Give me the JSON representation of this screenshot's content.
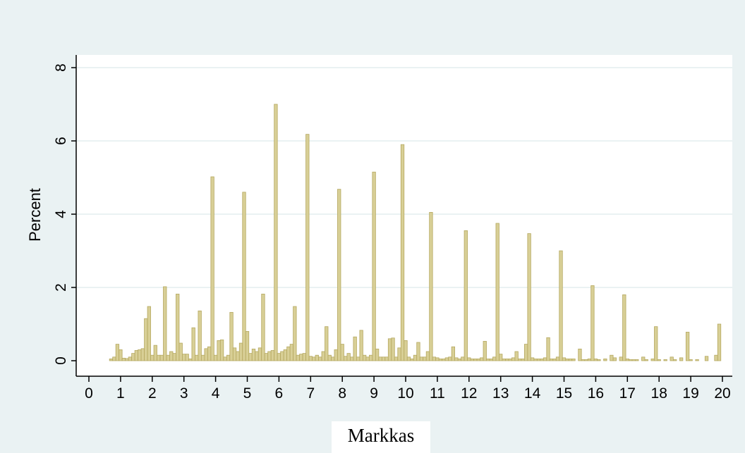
{
  "colors": {
    "background": "#eaf2f3",
    "plot_bg": "#ffffff",
    "bar_fill": "#d8cf96",
    "bar_stroke": "#b5a860",
    "grid": "#eaf2f3",
    "axis": "#000000"
  },
  "chart_data": {
    "type": "bar",
    "title": "",
    "xlabel": "Markkas",
    "ylabel": "Percent",
    "xlim": [
      -0.3,
      20.3
    ],
    "ylim": [
      -0.25,
      8.4
    ],
    "xticks": [
      "0",
      "1",
      "2",
      "3",
      "4",
      "5",
      "6",
      "7",
      "8",
      "9",
      "10",
      "11",
      "12",
      "13",
      "14",
      "15",
      "16",
      "17",
      "18",
      "19",
      "20"
    ],
    "yticks": [
      "0",
      "2",
      "4",
      "6",
      "8"
    ],
    "grid": "horizontal",
    "bin_width": 0.1,
    "bins": [
      {
        "x": 0.7,
        "y": 0.05
      },
      {
        "x": 0.8,
        "y": 0.1
      },
      {
        "x": 0.9,
        "y": 0.45
      },
      {
        "x": 1.0,
        "y": 0.3
      },
      {
        "x": 1.1,
        "y": 0.07
      },
      {
        "x": 1.2,
        "y": 0.06
      },
      {
        "x": 1.3,
        "y": 0.1
      },
      {
        "x": 1.4,
        "y": 0.2
      },
      {
        "x": 1.5,
        "y": 0.28
      },
      {
        "x": 1.6,
        "y": 0.3
      },
      {
        "x": 1.7,
        "y": 0.33
      },
      {
        "x": 1.8,
        "y": 1.15
      },
      {
        "x": 1.9,
        "y": 1.48
      },
      {
        "x": 2.0,
        "y": 0.15
      },
      {
        "x": 2.1,
        "y": 0.42
      },
      {
        "x": 2.2,
        "y": 0.15
      },
      {
        "x": 2.3,
        "y": 0.15
      },
      {
        "x": 2.4,
        "y": 2.02
      },
      {
        "x": 2.5,
        "y": 0.15
      },
      {
        "x": 2.6,
        "y": 0.25
      },
      {
        "x": 2.7,
        "y": 0.2
      },
      {
        "x": 2.8,
        "y": 1.82
      },
      {
        "x": 2.9,
        "y": 0.48
      },
      {
        "x": 3.0,
        "y": 0.18
      },
      {
        "x": 3.1,
        "y": 0.18
      },
      {
        "x": 3.2,
        "y": 0.05
      },
      {
        "x": 3.3,
        "y": 0.9
      },
      {
        "x": 3.4,
        "y": 0.15
      },
      {
        "x": 3.5,
        "y": 1.36
      },
      {
        "x": 3.6,
        "y": 0.15
      },
      {
        "x": 3.7,
        "y": 0.33
      },
      {
        "x": 3.8,
        "y": 0.38
      },
      {
        "x": 3.9,
        "y": 5.02
      },
      {
        "x": 4.0,
        "y": 0.15
      },
      {
        "x": 4.1,
        "y": 0.55
      },
      {
        "x": 4.2,
        "y": 0.57
      },
      {
        "x": 4.3,
        "y": 0.1
      },
      {
        "x": 4.4,
        "y": 0.15
      },
      {
        "x": 4.5,
        "y": 1.32
      },
      {
        "x": 4.6,
        "y": 0.35
      },
      {
        "x": 4.7,
        "y": 0.25
      },
      {
        "x": 4.8,
        "y": 0.48
      },
      {
        "x": 4.9,
        "y": 4.6
      },
      {
        "x": 5.0,
        "y": 0.8
      },
      {
        "x": 5.1,
        "y": 0.2
      },
      {
        "x": 5.2,
        "y": 0.32
      },
      {
        "x": 5.3,
        "y": 0.25
      },
      {
        "x": 5.4,
        "y": 0.35
      },
      {
        "x": 5.5,
        "y": 1.82
      },
      {
        "x": 5.6,
        "y": 0.2
      },
      {
        "x": 5.7,
        "y": 0.25
      },
      {
        "x": 5.8,
        "y": 0.28
      },
      {
        "x": 5.9,
        "y": 7.0
      },
      {
        "x": 6.0,
        "y": 0.2
      },
      {
        "x": 6.1,
        "y": 0.25
      },
      {
        "x": 6.2,
        "y": 0.3
      },
      {
        "x": 6.3,
        "y": 0.38
      },
      {
        "x": 6.4,
        "y": 0.45
      },
      {
        "x": 6.5,
        "y": 1.48
      },
      {
        "x": 6.6,
        "y": 0.15
      },
      {
        "x": 6.7,
        "y": 0.18
      },
      {
        "x": 6.8,
        "y": 0.2
      },
      {
        "x": 6.9,
        "y": 6.18
      },
      {
        "x": 7.0,
        "y": 0.12
      },
      {
        "x": 7.1,
        "y": 0.1
      },
      {
        "x": 7.2,
        "y": 0.15
      },
      {
        "x": 7.3,
        "y": 0.1
      },
      {
        "x": 7.4,
        "y": 0.25
      },
      {
        "x": 7.5,
        "y": 0.93
      },
      {
        "x": 7.6,
        "y": 0.15
      },
      {
        "x": 7.7,
        "y": 0.1
      },
      {
        "x": 7.8,
        "y": 0.3
      },
      {
        "x": 7.9,
        "y": 4.68
      },
      {
        "x": 8.0,
        "y": 0.45
      },
      {
        "x": 8.1,
        "y": 0.12
      },
      {
        "x": 8.2,
        "y": 0.2
      },
      {
        "x": 8.3,
        "y": 0.1
      },
      {
        "x": 8.4,
        "y": 0.65
      },
      {
        "x": 8.5,
        "y": 0.1
      },
      {
        "x": 8.6,
        "y": 0.83
      },
      {
        "x": 8.7,
        "y": 0.15
      },
      {
        "x": 8.8,
        "y": 0.1
      },
      {
        "x": 8.9,
        "y": 0.15
      },
      {
        "x": 9.0,
        "y": 5.15
      },
      {
        "x": 9.1,
        "y": 0.32
      },
      {
        "x": 9.2,
        "y": 0.1
      },
      {
        "x": 9.3,
        "y": 0.1
      },
      {
        "x": 9.4,
        "y": 0.1
      },
      {
        "x": 9.5,
        "y": 0.6
      },
      {
        "x": 9.6,
        "y": 0.62
      },
      {
        "x": 9.7,
        "y": 0.1
      },
      {
        "x": 9.8,
        "y": 0.35
      },
      {
        "x": 9.9,
        "y": 5.9
      },
      {
        "x": 10.0,
        "y": 0.55
      },
      {
        "x": 10.1,
        "y": 0.1
      },
      {
        "x": 10.2,
        "y": 0.05
      },
      {
        "x": 10.3,
        "y": 0.15
      },
      {
        "x": 10.4,
        "y": 0.5
      },
      {
        "x": 10.5,
        "y": 0.1
      },
      {
        "x": 10.6,
        "y": 0.1
      },
      {
        "x": 10.7,
        "y": 0.25
      },
      {
        "x": 10.8,
        "y": 4.05
      },
      {
        "x": 10.9,
        "y": 0.1
      },
      {
        "x": 11.0,
        "y": 0.08
      },
      {
        "x": 11.1,
        "y": 0.05
      },
      {
        "x": 11.2,
        "y": 0.05
      },
      {
        "x": 11.3,
        "y": 0.08
      },
      {
        "x": 11.4,
        "y": 0.1
      },
      {
        "x": 11.5,
        "y": 0.38
      },
      {
        "x": 11.6,
        "y": 0.08
      },
      {
        "x": 11.7,
        "y": 0.05
      },
      {
        "x": 11.8,
        "y": 0.1
      },
      {
        "x": 11.9,
        "y": 3.55
      },
      {
        "x": 12.0,
        "y": 0.08
      },
      {
        "x": 12.1,
        "y": 0.05
      },
      {
        "x": 12.2,
        "y": 0.05
      },
      {
        "x": 12.3,
        "y": 0.05
      },
      {
        "x": 12.4,
        "y": 0.08
      },
      {
        "x": 12.5,
        "y": 0.53
      },
      {
        "x": 12.6,
        "y": 0.05
      },
      {
        "x": 12.7,
        "y": 0.05
      },
      {
        "x": 12.8,
        "y": 0.1
      },
      {
        "x": 12.9,
        "y": 3.75
      },
      {
        "x": 13.0,
        "y": 0.18
      },
      {
        "x": 13.1,
        "y": 0.05
      },
      {
        "x": 13.2,
        "y": 0.05
      },
      {
        "x": 13.3,
        "y": 0.05
      },
      {
        "x": 13.4,
        "y": 0.08
      },
      {
        "x": 13.5,
        "y": 0.25
      },
      {
        "x": 13.6,
        "y": 0.05
      },
      {
        "x": 13.7,
        "y": 0.05
      },
      {
        "x": 13.8,
        "y": 0.45
      },
      {
        "x": 13.9,
        "y": 3.47
      },
      {
        "x": 14.0,
        "y": 0.08
      },
      {
        "x": 14.1,
        "y": 0.05
      },
      {
        "x": 14.2,
        "y": 0.05
      },
      {
        "x": 14.3,
        "y": 0.05
      },
      {
        "x": 14.4,
        "y": 0.08
      },
      {
        "x": 14.5,
        "y": 0.63
      },
      {
        "x": 14.6,
        "y": 0.05
      },
      {
        "x": 14.7,
        "y": 0.05
      },
      {
        "x": 14.8,
        "y": 0.1
      },
      {
        "x": 14.9,
        "y": 3.0
      },
      {
        "x": 15.0,
        "y": 0.08
      },
      {
        "x": 15.1,
        "y": 0.05
      },
      {
        "x": 15.2,
        "y": 0.05
      },
      {
        "x": 15.3,
        "y": 0.05
      },
      {
        "x": 15.5,
        "y": 0.32
      },
      {
        "x": 15.6,
        "y": 0.03
      },
      {
        "x": 15.7,
        "y": 0.03
      },
      {
        "x": 15.8,
        "y": 0.05
      },
      {
        "x": 15.9,
        "y": 2.05
      },
      {
        "x": 16.0,
        "y": 0.05
      },
      {
        "x": 16.1,
        "y": 0.03
      },
      {
        "x": 16.3,
        "y": 0.05
      },
      {
        "x": 16.5,
        "y": 0.15
      },
      {
        "x": 16.6,
        "y": 0.08
      },
      {
        "x": 16.8,
        "y": 0.1
      },
      {
        "x": 16.9,
        "y": 1.8
      },
      {
        "x": 17.0,
        "y": 0.05
      },
      {
        "x": 17.1,
        "y": 0.03
      },
      {
        "x": 17.2,
        "y": 0.03
      },
      {
        "x": 17.3,
        "y": 0.03
      },
      {
        "x": 17.5,
        "y": 0.1
      },
      {
        "x": 17.6,
        "y": 0.03
      },
      {
        "x": 17.8,
        "y": 0.05
      },
      {
        "x": 17.9,
        "y": 0.93
      },
      {
        "x": 18.0,
        "y": 0.03
      },
      {
        "x": 18.2,
        "y": 0.03
      },
      {
        "x": 18.4,
        "y": 0.1
      },
      {
        "x": 18.5,
        "y": 0.03
      },
      {
        "x": 18.7,
        "y": 0.08
      },
      {
        "x": 18.9,
        "y": 0.78
      },
      {
        "x": 19.0,
        "y": 0.03
      },
      {
        "x": 19.2,
        "y": 0.03
      },
      {
        "x": 19.5,
        "y": 0.12
      },
      {
        "x": 19.8,
        "y": 0.15
      },
      {
        "x": 19.9,
        "y": 1.0
      }
    ]
  }
}
